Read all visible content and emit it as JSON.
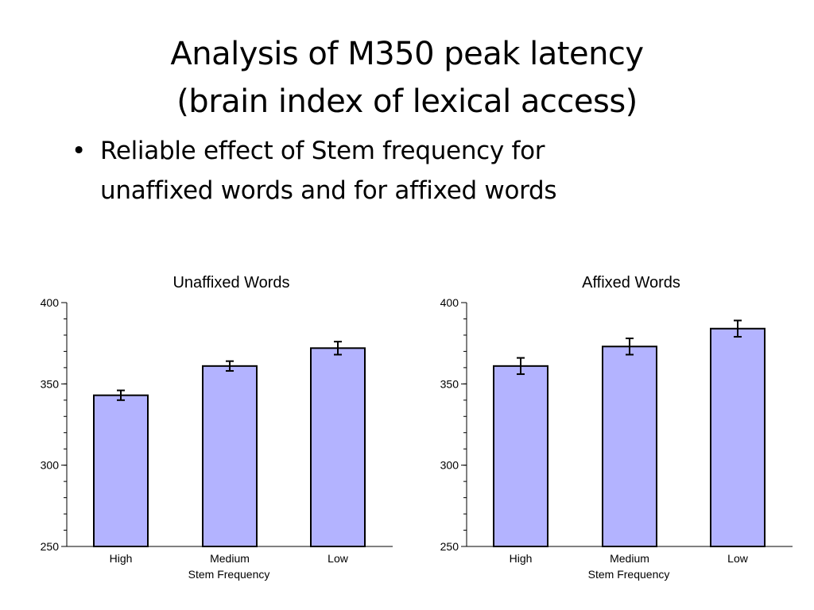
{
  "slide": {
    "title_line1": "Analysis of M350 peak latency",
    "title_line2": "(brain index of lexical access)",
    "bullet_marker": "•",
    "bullet_line1": "Reliable effect of Stem frequency for",
    "bullet_line2": "unaffixed words and for affixed words"
  },
  "colors": {
    "bar_fill": "#b3b3ff",
    "bar_stroke": "#000000"
  },
  "chart_data": [
    {
      "type": "bar",
      "title": "Unaffixed Words",
      "categories": [
        "High",
        "Medium",
        "Low"
      ],
      "values": [
        343,
        361,
        372
      ],
      "errors": [
        3,
        3,
        4
      ],
      "xlabel": "Stem Frequency",
      "ylabel": "",
      "ylim": [
        250,
        400
      ],
      "yticks": [
        250,
        300,
        350,
        400
      ],
      "grid": false
    },
    {
      "type": "bar",
      "title": "Affixed Words",
      "categories": [
        "High",
        "Medium",
        "Low"
      ],
      "values": [
        361,
        373,
        384
      ],
      "errors": [
        5,
        5,
        5
      ],
      "xlabel": "Stem Frequency",
      "ylabel": "",
      "ylim": [
        250,
        400
      ],
      "yticks": [
        250,
        300,
        350,
        400
      ],
      "grid": false
    }
  ]
}
